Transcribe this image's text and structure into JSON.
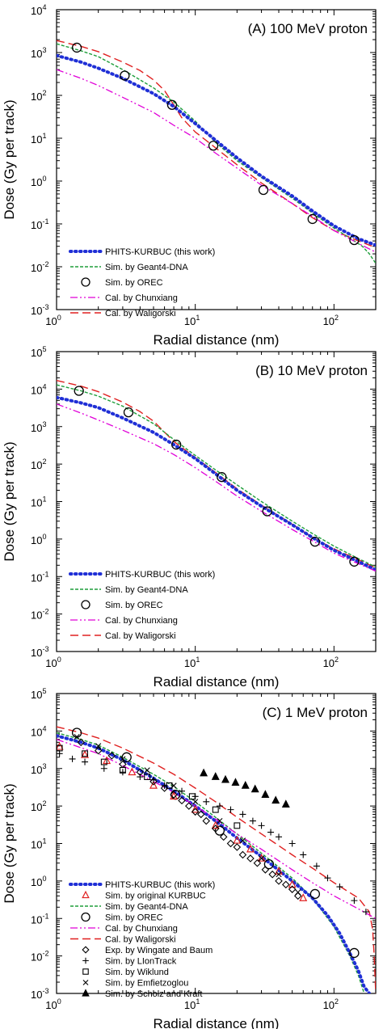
{
  "styles": {
    "PHITS-KURBUC (this work)": {
      "color": "#1f2fd6",
      "dash": "1.5 4.5",
      "width": 4,
      "cap": "round"
    },
    "Sim. by Geant4-DNA": {
      "color": "#1e9e3a",
      "dash": "4 2",
      "width": 1.4,
      "cap": "butt"
    },
    "Sim. by OREC": {
      "color": "#000000",
      "marker": "circle"
    },
    "Cal. by Chunxiang": {
      "color": "#e000d8",
      "dash": "9 3 2 3 2 3",
      "width": 1.3,
      "cap": "butt"
    },
    "Cal. by Waligorski": {
      "color": "#e02020",
      "dash": "10 5",
      "width": 1.4,
      "cap": "butt"
    },
    "Sim. by original KURBUC": {
      "color": "#e02020",
      "marker": "triangle"
    },
    "Exp. by Wingate and Baum": {
      "color": "#000000",
      "marker": "diamond"
    },
    "Sim. by LIonTrack": {
      "color": "#000000",
      "marker": "plus"
    },
    "Sim. by Wiklund": {
      "color": "#000000",
      "marker": "square"
    },
    "Sim. by Emfietzoglou": {
      "color": "#000000",
      "marker": "cross"
    },
    "Sim. by Scholz and Kraft": {
      "color": "#000000",
      "marker": "filled-triangle"
    }
  },
  "chart_data": [
    {
      "type": "line",
      "title": "(A) 100 MeV proton",
      "xlabel": "Radial distance (nm)",
      "ylabel": "Dose (Gy per track)",
      "xscale": "log",
      "yscale": "log",
      "xlim": [
        1,
        200
      ],
      "ylim_exp": [
        -3,
        4
      ],
      "xticks": [
        {
          "v": 1,
          "m": "10",
          "e": "0"
        },
        {
          "v": 10,
          "m": "10",
          "e": "1"
        },
        {
          "v": 100,
          "m": "10",
          "e": "2"
        }
      ],
      "yticks": [
        {
          "v": -3,
          "m": "10",
          "e": "-3"
        },
        {
          "v": -2,
          "m": "10",
          "e": "-2"
        },
        {
          "v": -1,
          "m": "10",
          "e": "-1"
        },
        {
          "v": 0,
          "m": "10",
          "e": "0"
        },
        {
          "v": 1,
          "m": "10",
          "e": "1"
        },
        {
          "v": 2,
          "m": "10",
          "e": "2"
        },
        {
          "v": 3,
          "m": "10",
          "e": "3"
        },
        {
          "v": 4,
          "m": "10",
          "e": "4"
        }
      ],
      "legend_position": "bottom-left",
      "legend": [
        "PHITS-KURBUC (this work)",
        "Sim. by Geant4-DNA",
        "Sim. by OREC",
        "Cal. by Chunxiang",
        "Cal. by Waligorski"
      ],
      "series": [
        {
          "name": "Cal. by Waligorski",
          "x": [
            1,
            1.5,
            2,
            3,
            4,
            5,
            6,
            7,
            8,
            10,
            14,
            20,
            30,
            50,
            70,
            100,
            150,
            200
          ],
          "y": [
            1900,
            1400,
            1050,
            600,
            380,
            230,
            130,
            60,
            30,
            14,
            6,
            2.4,
            0.9,
            0.3,
            0.14,
            0.07,
            0.04,
            0.028
          ]
        },
        {
          "name": "Sim. by Geant4-DNA",
          "x": [
            1,
            1.5,
            2,
            3,
            5,
            7,
            10,
            14,
            20,
            30,
            50,
            70,
            100,
            140,
            160,
            180,
            200
          ],
          "y": [
            1600,
            1100,
            800,
            400,
            150,
            70,
            25,
            8,
            3,
            1.2,
            0.4,
            0.18,
            0.08,
            0.04,
            0.03,
            0.02,
            0.012
          ]
        },
        {
          "name": "PHITS-KURBUC (this work)",
          "x": [
            1,
            1.5,
            2,
            3,
            5,
            7,
            10,
            14,
            20,
            30,
            50,
            70,
            100,
            150,
            200
          ],
          "y": [
            850,
            600,
            430,
            250,
            110,
            55,
            22,
            9,
            3.5,
            1.3,
            0.45,
            0.2,
            0.09,
            0.045,
            0.032
          ]
        },
        {
          "name": "Cal. by Chunxiang",
          "x": [
            1,
            1.5,
            2,
            3,
            5,
            7,
            10,
            14,
            20,
            30,
            50,
            70,
            100,
            150,
            200
          ],
          "y": [
            400,
            250,
            170,
            90,
            40,
            20,
            10,
            4.5,
            2,
            0.8,
            0.3,
            0.15,
            0.07,
            0.035,
            0.022
          ]
        },
        {
          "name": "Sim. by OREC",
          "x": [
            1.4,
            3.1,
            6.8,
            13.5,
            31,
            70,
            140
          ],
          "y": [
            1300,
            290,
            60,
            6.7,
            0.62,
            0.13,
            0.042
          ]
        }
      ]
    },
    {
      "type": "line",
      "title": "(B) 10 MeV proton",
      "xlabel": "Radial distance (nm)",
      "ylabel": "Dose (Gy per track)",
      "xscale": "log",
      "yscale": "log",
      "xlim": [
        1,
        200
      ],
      "ylim_exp": [
        -3,
        5
      ],
      "xticks": [
        {
          "v": 1,
          "m": "10",
          "e": "0"
        },
        {
          "v": 10,
          "m": "10",
          "e": "1"
        },
        {
          "v": 100,
          "m": "10",
          "e": "2"
        }
      ],
      "yticks": [
        {
          "v": -3,
          "m": "10",
          "e": "-3"
        },
        {
          "v": -2,
          "m": "10",
          "e": "-2"
        },
        {
          "v": -1,
          "m": "10",
          "e": "-1"
        },
        {
          "v": 0,
          "m": "10",
          "e": "0"
        },
        {
          "v": 1,
          "m": "10",
          "e": "1"
        },
        {
          "v": 2,
          "m": "10",
          "e": "2"
        },
        {
          "v": 3,
          "m": "10",
          "e": "3"
        },
        {
          "v": 4,
          "m": "10",
          "e": "4"
        },
        {
          "v": 5,
          "m": "10",
          "e": "5"
        }
      ],
      "legend_position": "bottom-left",
      "legend": [
        "PHITS-KURBUC (this work)",
        "Sim. by Geant4-DNA",
        "Sim. by OREC",
        "Cal. by Chunxiang",
        "Cal. by Waligorski"
      ],
      "series": [
        {
          "name": "Cal. by Waligorski",
          "x": [
            1,
            1.5,
            2,
            3,
            4,
            5,
            7,
            10,
            14,
            20,
            30,
            50,
            70,
            100,
            150,
            200
          ],
          "y": [
            17000,
            12000,
            8500,
            4500,
            2500,
            1400,
            400,
            150,
            60,
            22,
            8,
            2.5,
            1.1,
            0.55,
            0.28,
            0.17
          ]
        },
        {
          "name": "Sim. by Geant4-DNA",
          "x": [
            1,
            1.5,
            2,
            3,
            5,
            7,
            10,
            14,
            20,
            30,
            50,
            70,
            100,
            150,
            200
          ],
          "y": [
            13000,
            9000,
            6500,
            3500,
            1200,
            450,
            170,
            70,
            28,
            10,
            3,
            1.4,
            0.65,
            0.3,
            0.18
          ]
        },
        {
          "name": "PHITS-KURBUC (this work)",
          "x": [
            1,
            1.5,
            2,
            3,
            5,
            7,
            10,
            14,
            20,
            30,
            50,
            70,
            100,
            150,
            200
          ],
          "y": [
            6000,
            4300,
            3200,
            1700,
            700,
            330,
            140,
            55,
            20,
            7.5,
            2.4,
            1.1,
            0.5,
            0.25,
            0.15
          ]
        },
        {
          "name": "Cal. by Chunxiang",
          "x": [
            1,
            1.5,
            2,
            3,
            5,
            7,
            10,
            14,
            20,
            30,
            50,
            70,
            100,
            150,
            200
          ],
          "y": [
            4000,
            2300,
            1500,
            800,
            350,
            180,
            80,
            35,
            14,
            5.5,
            1.8,
            0.9,
            0.42,
            0.22,
            0.14
          ]
        },
        {
          "name": "Sim. by OREC",
          "x": [
            1.45,
            3.3,
            7.3,
            15.5,
            33,
            73,
            140
          ],
          "y": [
            9000,
            2400,
            330,
            45,
            5.5,
            0.85,
            0.25
          ]
        }
      ]
    },
    {
      "type": "line",
      "title": "(C) 1 MeV proton",
      "xlabel": "Radial distance (nm)",
      "ylabel": "Dose (Gy per track)",
      "xscale": "log",
      "yscale": "log",
      "xlim": [
        1,
        200
      ],
      "ylim_exp": [
        -3,
        5
      ],
      "xticks": [
        {
          "v": 1,
          "m": "10",
          "e": "0"
        },
        {
          "v": 10,
          "m": "10",
          "e": "1"
        },
        {
          "v": 100,
          "m": "10",
          "e": "2"
        }
      ],
      "yticks": [
        {
          "v": -3,
          "m": "10",
          "e": "-3"
        },
        {
          "v": -2,
          "m": "10",
          "e": "-2"
        },
        {
          "v": -1,
          "m": "10",
          "e": "-1"
        },
        {
          "v": 0,
          "m": "10",
          "e": "0"
        },
        {
          "v": 1,
          "m": "10",
          "e": "1"
        },
        {
          "v": 2,
          "m": "10",
          "e": "2"
        },
        {
          "v": 3,
          "m": "10",
          "e": "3"
        },
        {
          "v": 4,
          "m": "10",
          "e": "4"
        },
        {
          "v": 5,
          "m": "10",
          "e": "5"
        }
      ],
      "legend_position": "bottom-left",
      "legend": [
        "PHITS-KURBUC (this work)",
        "Sim. by original KURBUC",
        "Sim. by Geant4-DNA",
        "Sim. by OREC",
        "Cal. by Chunxiang",
        "Cal. by Waligorski",
        "Exp. by Wingate and Baum",
        "Sim. by LIonTrack",
        "Sim. by Wiklund",
        "Sim. by Emfietzoglou",
        "Sim. by Scholz and Kraft"
      ],
      "series": [
        {
          "name": "Cal. by Waligorski",
          "x": [
            1,
            1.5,
            2,
            3,
            5,
            7,
            10,
            14,
            20,
            30,
            50,
            70,
            100,
            150,
            180,
            190,
            195,
            200
          ],
          "y": [
            13000,
            9000,
            6500,
            3500,
            1400,
            700,
            300,
            130,
            50,
            18,
            5,
            2.2,
            0.9,
            0.35,
            0.15,
            0.05,
            0.01,
            0.001
          ]
        },
        {
          "name": "Sim. by Geant4-DNA",
          "x": [
            1,
            1.5,
            2,
            3,
            5,
            7,
            10,
            14,
            20,
            30,
            50,
            70,
            100,
            130,
            150,
            165
          ],
          "y": [
            9000,
            6000,
            4200,
            2000,
            700,
            330,
            130,
            50,
            18,
            5.5,
            1.2,
            0.35,
            0.06,
            0.01,
            0.003,
            0.001
          ]
        },
        {
          "name": "PHITS-KURBUC (this work)",
          "x": [
            1,
            1.5,
            2,
            3,
            5,
            7,
            10,
            14,
            20,
            30,
            50,
            70,
            90,
            110,
            130,
            150,
            165,
            180
          ],
          "y": [
            7500,
            5000,
            3500,
            1700,
            550,
            250,
            100,
            40,
            14,
            4.5,
            1,
            0.35,
            0.12,
            0.04,
            0.012,
            0.004,
            0.0015,
            0.001
          ]
        },
        {
          "name": "Cal. by Chunxiang",
          "x": [
            1,
            1.5,
            2,
            3,
            5,
            7,
            10,
            14,
            20,
            30,
            50,
            70,
            100,
            150,
            200
          ],
          "y": [
            6000,
            3600,
            2500,
            1200,
            450,
            230,
            100,
            45,
            18,
            7,
            2,
            0.9,
            0.4,
            0.18,
            0.1
          ]
        },
        {
          "name": "Sim. by OREC",
          "x": [
            1.4,
            3.2,
            7.2,
            15,
            34,
            73,
            140
          ],
          "y": [
            9000,
            2000,
            200,
            22,
            2.8,
            0.45,
            0.012
          ]
        },
        {
          "name": "Sim. by original KURBUC",
          "x": [
            1.05,
            1.6,
            2.3,
            3.5,
            5,
            7,
            10,
            14,
            20,
            25,
            30,
            40,
            50,
            60
          ],
          "y": [
            3800,
            2300,
            1600,
            800,
            350,
            180,
            80,
            30,
            12,
            7,
            4,
            1.8,
            0.8,
            0.35
          ]
        },
        {
          "name": "Exp. by Wingate and Baum",
          "x": [
            1.5,
            2,
            2.5,
            3,
            4,
            5,
            6,
            7,
            8,
            9,
            10,
            11,
            12,
            14,
            16,
            18,
            20,
            22,
            25,
            28,
            32,
            36,
            40,
            45,
            50,
            55
          ],
          "y": [
            5000,
            3000,
            2200,
            1300,
            800,
            450,
            300,
            200,
            140,
            100,
            70,
            60,
            40,
            25,
            15,
            10,
            8,
            5,
            4,
            3,
            2,
            1.5,
            1,
            0.8,
            0.6,
            0.4
          ]
        },
        {
          "name": "Sim. by LIonTrack",
          "x": [
            1.05,
            1.3,
            1.6,
            2.2,
            3,
            4,
            5,
            6,
            8,
            10,
            12,
            15,
            18,
            22,
            26,
            30,
            35,
            40,
            50,
            60,
            75,
            90,
            110,
            140,
            170
          ],
          "y": [
            2500,
            1800,
            1500,
            1000,
            800,
            600,
            500,
            350,
            250,
            180,
            130,
            100,
            80,
            60,
            40,
            30,
            20,
            15,
            10,
            5,
            2.5,
            1.2,
            0.7,
            0.3,
            0.15
          ]
        },
        {
          "name": "Sim. by Wiklund",
          "x": [
            1.05,
            1.6,
            2.2,
            3,
            4.5,
            6.5,
            9.5,
            14,
            20
          ],
          "y": [
            3500,
            2500,
            1500,
            900,
            600,
            350,
            180,
            80,
            30
          ]
        },
        {
          "name": "Sim. by Emfietzoglou",
          "x": [
            1.4,
            2,
            3,
            4.5,
            7,
            10,
            15,
            22,
            30,
            40,
            55
          ],
          "y": [
            7000,
            4000,
            1800,
            900,
            350,
            130,
            40,
            12,
            4,
            1.5,
            0.5
          ]
        },
        {
          "name": "Sim. by Scholz and Kraft",
          "x": [
            11.5,
            14,
            16.5,
            19.5,
            23,
            27,
            32,
            38,
            45
          ],
          "y": [
            750,
            600,
            500,
            420,
            350,
            280,
            200,
            140,
            110
          ]
        }
      ]
    }
  ]
}
